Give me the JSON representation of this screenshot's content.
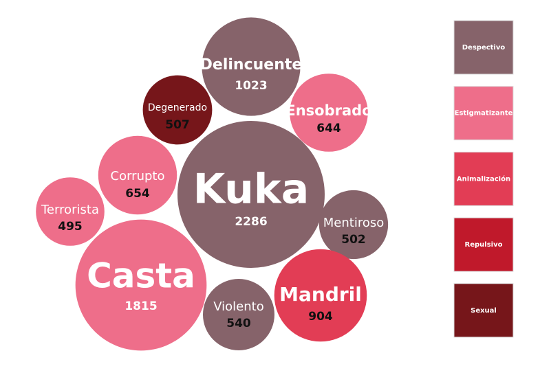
{
  "chart_data": {
    "type": "bubble",
    "series": [
      {
        "name": "Despectivo",
        "color": "#86636a",
        "categories": [
          "Kuka",
          "Delincuente",
          "Mentiroso",
          "Violento"
        ],
        "values": [
          2286,
          1023,
          502,
          540
        ]
      },
      {
        "name": "Estigmatizante",
        "color": "#ee6e8a",
        "categories": [
          "Casta",
          "Corrupto",
          "Terrorista",
          "Ensobrado"
        ],
        "values": [
          1815,
          654,
          495,
          644
        ]
      },
      {
        "name": "Animalización",
        "color": "#e23d55",
        "categories": [
          "Mandril"
        ],
        "values": [
          904
        ]
      },
      {
        "name": "Repulsivo",
        "color": "#c0192b",
        "categories": [],
        "values": []
      },
      {
        "name": "Sexual",
        "color": "#76161a",
        "categories": [
          "Degenerado"
        ],
        "values": [
          507
        ]
      }
    ]
  }
}
